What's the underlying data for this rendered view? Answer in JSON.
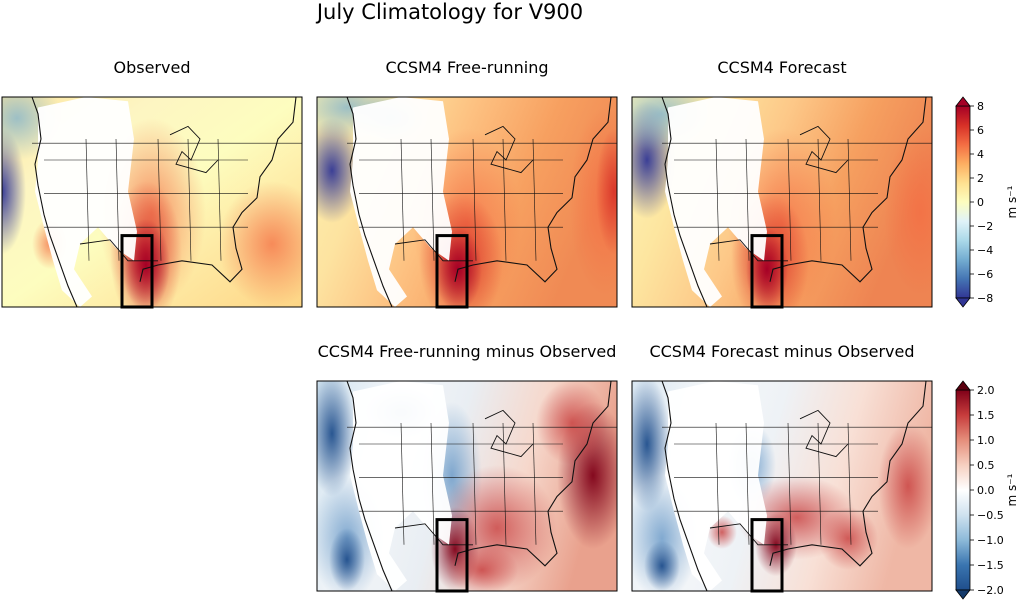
{
  "figure": {
    "title": "July Climatology for V900"
  },
  "panels": [
    {
      "id": "obs",
      "title": "Observed",
      "kind": "clim",
      "pal": "obs"
    },
    {
      "id": "free",
      "title": "CCSM4 Free-running",
      "kind": "clim",
      "pal": "free"
    },
    {
      "id": "fcst",
      "title": "CCSM4 Forecast",
      "kind": "clim",
      "pal": "fcst"
    },
    {
      "id": "free_diff",
      "title": "CCSM4 Free-running minus Observed",
      "kind": "diff",
      "pal": "d1"
    },
    {
      "id": "fcst_diff",
      "title": "CCSM4 Forecast minus Observed",
      "kind": "diff",
      "pal": "d2"
    }
  ],
  "colorbars": [
    {
      "id": "clim",
      "label": "m s⁻¹",
      "ticks": [
        "8",
        "6",
        "4",
        "2",
        "0",
        "−2",
        "−4",
        "−6",
        "−8"
      ]
    },
    {
      "id": "diff",
      "label": "m s⁻¹",
      "ticks": [
        "2.0",
        "1.5",
        "1.0",
        "0.5",
        "0.0",
        "−0.5",
        "−1.0",
        "−1.5",
        "−2.0"
      ]
    }
  ],
  "chart_data": {
    "type": "heatmap",
    "title": "July Climatology for V900",
    "variable": "V900",
    "units": "m s⁻¹",
    "climatology_range": [
      -8,
      8
    ],
    "difference_range": [
      -2.0,
      2.0
    ],
    "colormap": "diverging blue-white-red",
    "colors": {
      "neg_max": "#313695",
      "zero": "#fdfdbf",
      "pos_max": "#a50026",
      "diff_neg": "#1f4e8c",
      "diff_pos": "#7f0018"
    }
  }
}
